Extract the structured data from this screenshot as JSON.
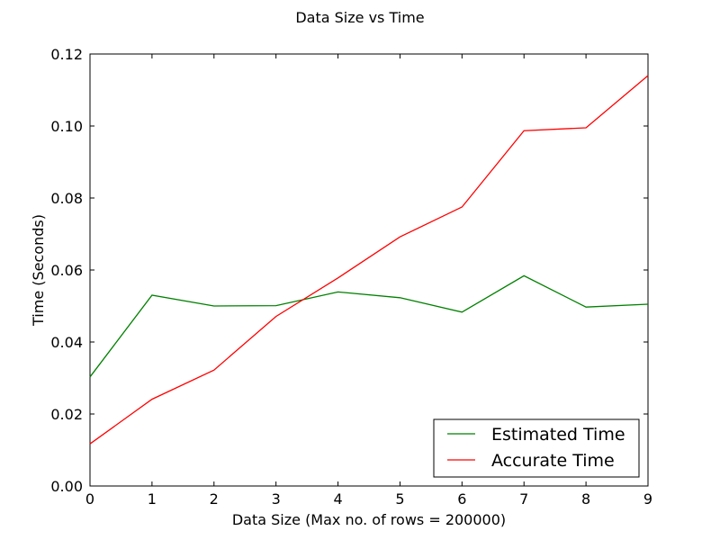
{
  "chart_data": {
    "type": "line",
    "title": "Data Size vs Time",
    "xlabel": "Data Size (Max no. of rows = 200000)",
    "ylabel": "Time (Seconds)",
    "xlim": [
      0,
      9
    ],
    "ylim": [
      0.0,
      0.12
    ],
    "x": [
      0,
      1,
      2,
      3,
      4,
      5,
      6,
      7,
      8,
      9
    ],
    "x_ticks": [
      "0",
      "1",
      "2",
      "3",
      "4",
      "5",
      "6",
      "7",
      "8",
      "9"
    ],
    "y_ticks": [
      "0.00",
      "0.02",
      "0.04",
      "0.06",
      "0.08",
      "0.10",
      "0.12"
    ],
    "grid": false,
    "legend_position": "lower-right",
    "series": [
      {
        "name": "Estimated Time",
        "color": "#008000",
        "values": [
          0.0303,
          0.053,
          0.05,
          0.0501,
          0.0539,
          0.0523,
          0.0483,
          0.0584,
          0.0497,
          0.0505
        ]
      },
      {
        "name": "Accurate Time",
        "color": "#ff0000",
        "values": [
          0.0117,
          0.0241,
          0.0322,
          0.0471,
          0.0578,
          0.0692,
          0.0775,
          0.0987,
          0.0995,
          0.114
        ]
      }
    ]
  }
}
